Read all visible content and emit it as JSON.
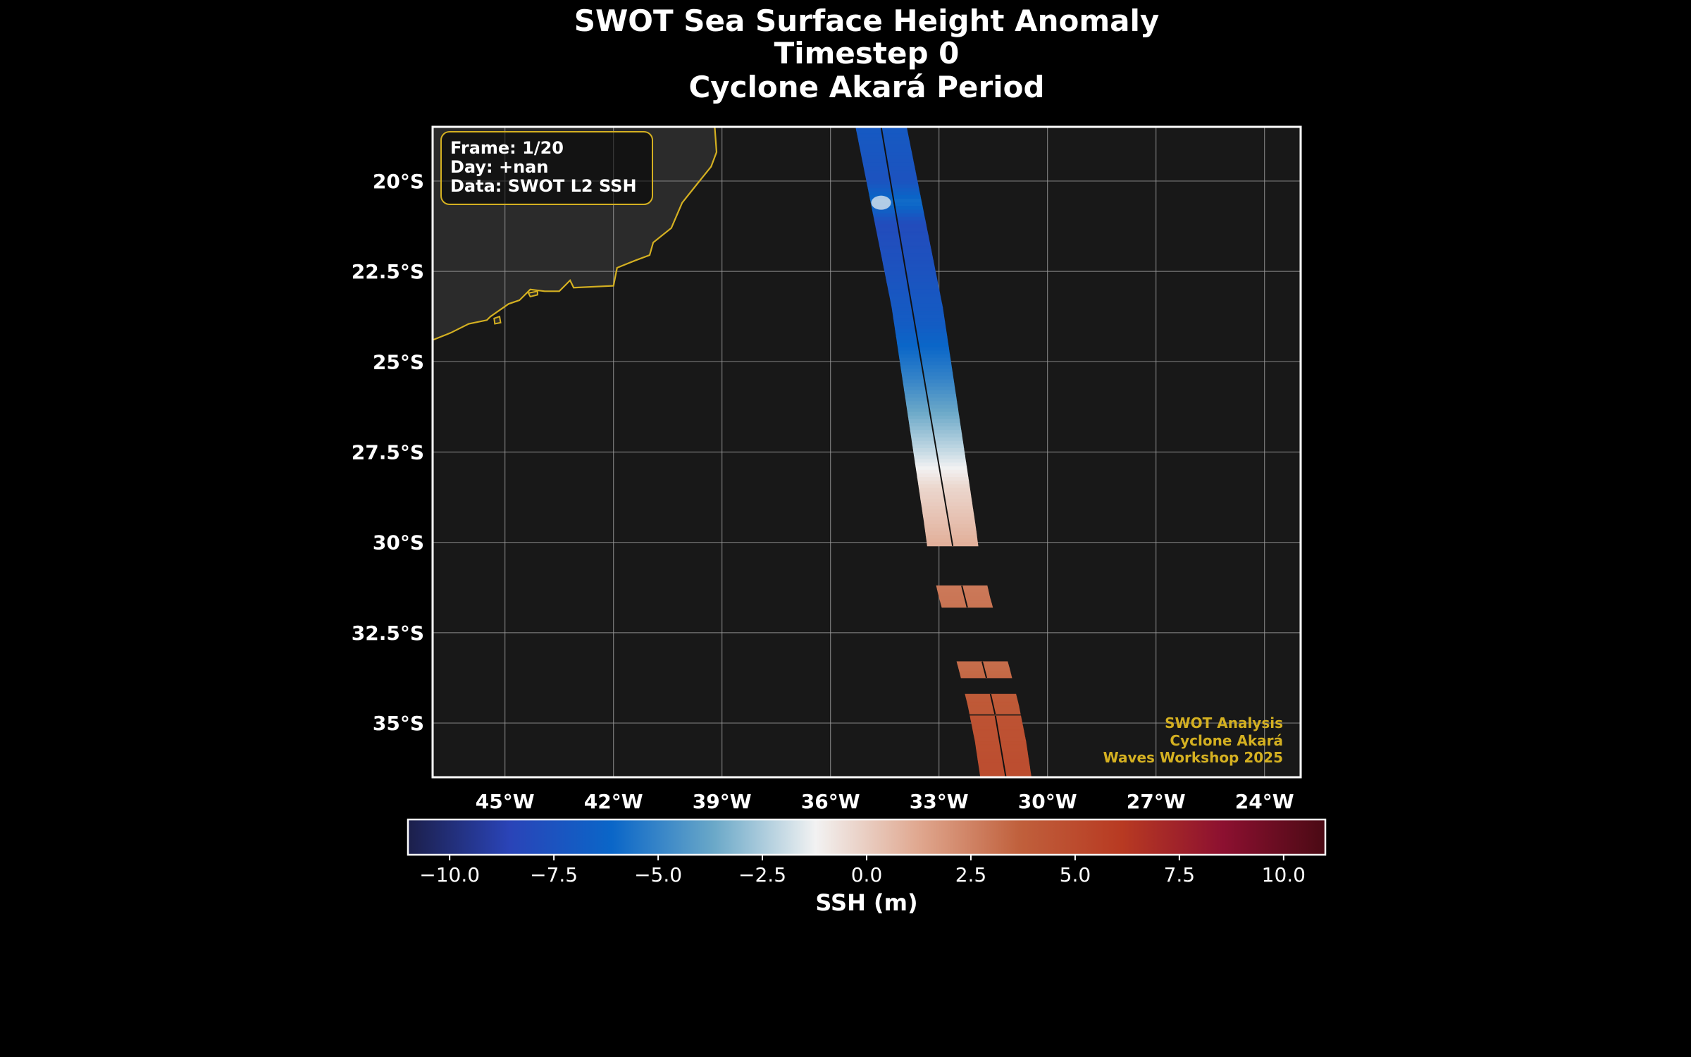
{
  "title": {
    "lines": [
      "SWOT Sea Surface Height Anomaly",
      "Timestep 0",
      "Cyclone Akará Period"
    ]
  },
  "colors": {
    "background": "#000000",
    "map_background": "#181818",
    "land": "#2b2b2b",
    "coastline": "#d4b021",
    "gridline": "#9a9a9a",
    "frame": "#ffffff",
    "watermark": "#d4b021",
    "info_box_border": "#d4b021",
    "colormap_stops": [
      "#1c1f4a",
      "#2a44b8",
      "#0a66c8",
      "#6aa8c8",
      "#f2f2f2",
      "#e0a890",
      "#c0603c",
      "#b83a22",
      "#8c1030",
      "#4a0a14"
    ]
  },
  "info_box": {
    "lines": [
      "Frame: 1/20",
      "Day: +nan",
      "Data: SWOT L2 SSH"
    ]
  },
  "watermark": {
    "lines": [
      "SWOT Analysis",
      "Cyclone Akará",
      "Waves Workshop 2025"
    ]
  },
  "map": {
    "projection": "PlateCarree",
    "lon_range": [
      -47,
      -23
    ],
    "lat_range": [
      -36.5,
      -18.5
    ],
    "gridlines": true,
    "lon_ticks": [
      -45,
      -42,
      -39,
      -36,
      -33,
      -30,
      -27,
      -24
    ],
    "lon_tick_labels": [
      "45°W",
      "42°W",
      "39°W",
      "36°W",
      "33°W",
      "30°W",
      "27°W",
      "24°W"
    ],
    "lat_ticks": [
      -20,
      -22.5,
      -25,
      -27.5,
      -30,
      -32.5,
      -35
    ],
    "lat_tick_labels": [
      "20°S",
      "22.5°S",
      "25°S",
      "27.5°S",
      "30°S",
      "32.5°S",
      "35°S"
    ],
    "coastline": [
      [
        -39.2,
        -18.5
      ],
      [
        -39.15,
        -19.2
      ],
      [
        -39.3,
        -19.6
      ],
      [
        -39.7,
        -20.1
      ],
      [
        -40.1,
        -20.6
      ],
      [
        -40.4,
        -21.3
      ],
      [
        -40.9,
        -21.7
      ],
      [
        -41.0,
        -22.05
      ],
      [
        -41.4,
        -22.2
      ],
      [
        -41.9,
        -22.4
      ],
      [
        -42.0,
        -22.9
      ],
      [
        -43.1,
        -22.95
      ],
      [
        -43.2,
        -22.75
      ],
      [
        -43.3,
        -22.85
      ],
      [
        -43.5,
        -23.05
      ],
      [
        -43.9,
        -23.05
      ],
      [
        -44.3,
        -23.0
      ],
      [
        -44.6,
        -23.3
      ],
      [
        -44.9,
        -23.4
      ],
      [
        -45.4,
        -23.75
      ],
      [
        -45.5,
        -23.85
      ],
      [
        -46.0,
        -23.95
      ],
      [
        -46.5,
        -24.2
      ],
      [
        -47.0,
        -24.4
      ]
    ],
    "islands": [
      [
        [
          -45.15,
          -23.75
        ],
        [
          -45.3,
          -23.8
        ],
        [
          -45.28,
          -23.95
        ],
        [
          -45.12,
          -23.92
        ],
        [
          -45.15,
          -23.75
        ]
      ],
      [
        [
          -44.1,
          -23.05
        ],
        [
          -44.35,
          -23.1
        ],
        [
          -44.3,
          -23.2
        ],
        [
          -44.1,
          -23.15
        ],
        [
          -44.1,
          -23.05
        ]
      ]
    ]
  },
  "swath": {
    "centerline": [
      [
        -34.6,
        -18.5
      ],
      [
        -34.4,
        -19.5
      ],
      [
        -34.2,
        -20.5
      ],
      [
        -34.0,
        -21.5
      ],
      [
        -33.8,
        -22.5
      ],
      [
        -33.6,
        -23.5
      ],
      [
        -33.45,
        -24.5
      ],
      [
        -33.3,
        -25.5
      ],
      [
        -33.15,
        -26.5
      ],
      [
        -33.0,
        -27.5
      ],
      [
        -32.85,
        -28.5
      ],
      [
        -32.7,
        -29.5
      ],
      [
        -32.62,
        -30.1
      ],
      [
        -32.3,
        -31.5
      ],
      [
        -31.75,
        -33.5
      ],
      [
        -31.5,
        -34.5
      ],
      [
        -31.3,
        -35.5
      ],
      [
        -31.15,
        -36.5
      ]
    ],
    "half_width_deg": 0.7,
    "segments": [
      {
        "lat_top": -18.5,
        "lat_bottom": -30.1,
        "samples": [
          {
            "lat": -18.5,
            "ssh": -7.0
          },
          {
            "lat": -20.0,
            "ssh": -7.5
          },
          {
            "lat": -20.6,
            "ssh": -5.8
          },
          {
            "lat": -21.2,
            "ssh": -8.0
          },
          {
            "lat": -22.5,
            "ssh": -7.5
          },
          {
            "lat": -24.0,
            "ssh": -6.8
          },
          {
            "lat": -25.5,
            "ssh": -5.0
          },
          {
            "lat": -26.5,
            "ssh": -3.5
          },
          {
            "lat": -27.5,
            "ssh": -2.0
          },
          {
            "lat": -28.5,
            "ssh": -0.3
          },
          {
            "lat": -29.5,
            "ssh": 0.5
          },
          {
            "lat": -30.1,
            "ssh": 1.0
          }
        ]
      },
      {
        "lat_top": -31.2,
        "lat_bottom": -31.8,
        "samples": [
          {
            "lat": -31.2,
            "ssh": 2.8
          },
          {
            "lat": -31.8,
            "ssh": 3.0
          }
        ]
      },
      {
        "lat_top": -33.3,
        "lat_bottom": -33.75,
        "samples": [
          {
            "lat": -33.3,
            "ssh": 3.2
          },
          {
            "lat": -33.75,
            "ssh": 3.4
          }
        ]
      },
      {
        "lat_top": -34.2,
        "lat_bottom": -34.75,
        "samples": [
          {
            "lat": -34.2,
            "ssh": 4.0
          },
          {
            "lat": -34.75,
            "ssh": 4.2
          }
        ]
      },
      {
        "lat_top": -34.8,
        "lat_bottom": -36.5,
        "samples": [
          {
            "lat": -34.8,
            "ssh": 4.5
          },
          {
            "lat": -36.5,
            "ssh": 4.9
          }
        ]
      }
    ]
  },
  "colorbar": {
    "label": "SSH (m)",
    "range": [
      -11,
      11
    ],
    "ticks": [
      -10,
      -7.5,
      -5,
      -2.5,
      0,
      2.5,
      5,
      7.5,
      10
    ],
    "tick_labels": [
      "−10.0",
      "−7.5",
      "−5.0",
      "−2.5",
      "0.0",
      "2.5",
      "5.0",
      "7.5",
      "10.0"
    ]
  }
}
